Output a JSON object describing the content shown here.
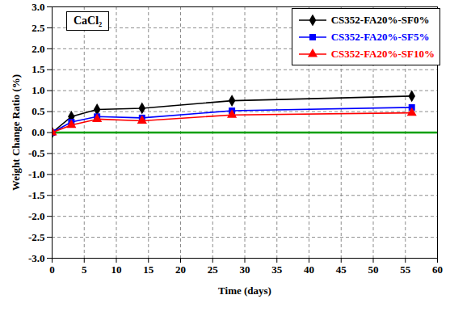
{
  "chart_data": {
    "type": "line",
    "title": "CaCl₂",
    "x_label": "Time (days)",
    "y_label": "Weight Change Ratio (%)",
    "x": [
      0,
      3,
      7,
      14,
      28,
      56
    ],
    "series": [
      {
        "name": "CS352-FA20%-SF0%",
        "color": "#000000",
        "marker": "diamond",
        "values": [
          0,
          0.38,
          0.55,
          0.58,
          0.76,
          0.87
        ]
      },
      {
        "name": "CS352-FA20%-SF5%",
        "color": "#0000ff",
        "marker": "square",
        "values": [
          0,
          0.25,
          0.38,
          0.35,
          0.52,
          0.6
        ]
      },
      {
        "name": "CS352-FA20%-SF10%",
        "color": "#ff0000",
        "marker": "triangle",
        "values": [
          0,
          0.18,
          0.32,
          0.28,
          0.42,
          0.47
        ]
      }
    ],
    "xlim": [
      0,
      60
    ],
    "xticks": [
      0,
      5,
      10,
      15,
      20,
      25,
      30,
      35,
      40,
      45,
      50,
      55,
      60
    ],
    "ylim": [
      -3,
      3
    ],
    "yticks": [
      {
        "value": -3,
        "label": "-3.0"
      },
      {
        "value": -2.5,
        "label": "-2.5"
      },
      {
        "value": -2,
        "label": "-2.0"
      },
      {
        "value": -1.5,
        "label": "-1.5"
      },
      {
        "value": -1,
        "label": "-1.0"
      },
      {
        "value": -0.5,
        "label": "-0.5"
      },
      {
        "value": 0,
        "label": "0.0"
      },
      {
        "value": 0.5,
        "label": "0.5"
      },
      {
        "value": 1,
        "label": "1.0"
      },
      {
        "value": 1.5,
        "label": "1.5"
      },
      {
        "value": 2,
        "label": "2.0"
      },
      {
        "value": 2.5,
        "label": "2.5"
      },
      {
        "value": 3,
        "label": "3.0"
      }
    ],
    "reference_lines": [
      {
        "value": 0,
        "color": "#00a000"
      }
    ],
    "grid": true,
    "legend": "top-right"
  }
}
